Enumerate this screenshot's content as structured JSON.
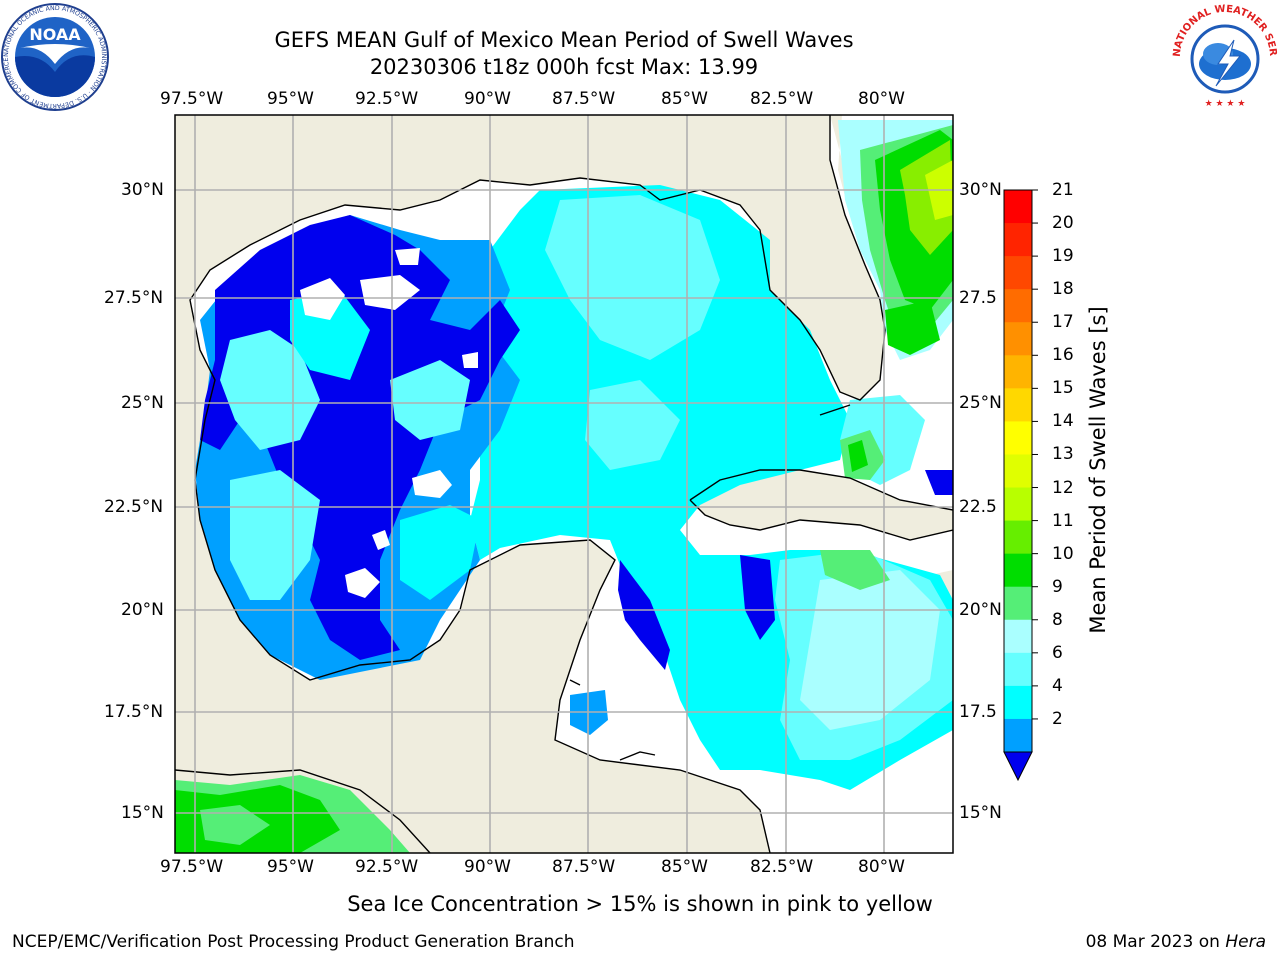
{
  "header": {
    "title_line1": "GEFS MEAN Gulf of Mexico Mean Period of Swell Waves",
    "title_line2": "20230306 t18z 000h fcst   Max: 13.99"
  },
  "logos": {
    "noaa_text": "NOAA",
    "noaa_ring_text": "NATIONAL OCEANIC AND ATMOSPHERIC ADMINISTRATION · U.S. DEPARTMENT OF COMMERCE",
    "nws_ring_text": "NATIONAL WEATHER SERVICE"
  },
  "map": {
    "lon_labels": [
      "97.5°W",
      "95°W",
      "92.5°W",
      "90°W",
      "87.5°W",
      "85°W",
      "82.5°W",
      "80°W"
    ],
    "lat_labels_left": [
      "30°N",
      "27.5°N",
      "25°N",
      "22.5°N",
      "20°N",
      "17.5°N",
      "15°N"
    ],
    "lat_labels_right": [
      "30°N",
      "27.5",
      "25°N",
      "22.5",
      "20°N",
      "17.5",
      "15°N"
    ],
    "colors": {
      "land": "#efedde",
      "c2": "#0000ee",
      "c4": "#00a0ff",
      "c6": "#00ffff",
      "c8": "#66ffff",
      "c9": "#aaffff",
      "c10": "#55ee77",
      "c11": "#00dd00",
      "c12": "#88ee00",
      "c13": "#ccff00",
      "grid": "#b0b0b0"
    }
  },
  "colorbar": {
    "title": "Mean Period of Swell Waves [s]",
    "ticks": [
      "21",
      "20",
      "19",
      "18",
      "17",
      "16",
      "15",
      "14",
      "13",
      "12",
      "11",
      "10",
      "9",
      "8",
      "6",
      "4",
      "2"
    ],
    "colors": [
      "#ff0000",
      "#ff2400",
      "#ff4800",
      "#ff6c00",
      "#ff9000",
      "#ffb400",
      "#ffd800",
      "#ffff00",
      "#e0ff00",
      "#b8ff00",
      "#66ee00",
      "#00dd00",
      "#55ee77",
      "#aaffff",
      "#66ffff",
      "#00ffff",
      "#00a0ff",
      "#0000ee"
    ]
  },
  "note": "Sea Ice Concentration > 15% is shown in pink to yellow",
  "footer": {
    "left": "NCEP/EMC/Verification Post Processing Product Generation Branch",
    "right_date": "08 Mar 2023 on ",
    "right_machine": "Hera"
  }
}
